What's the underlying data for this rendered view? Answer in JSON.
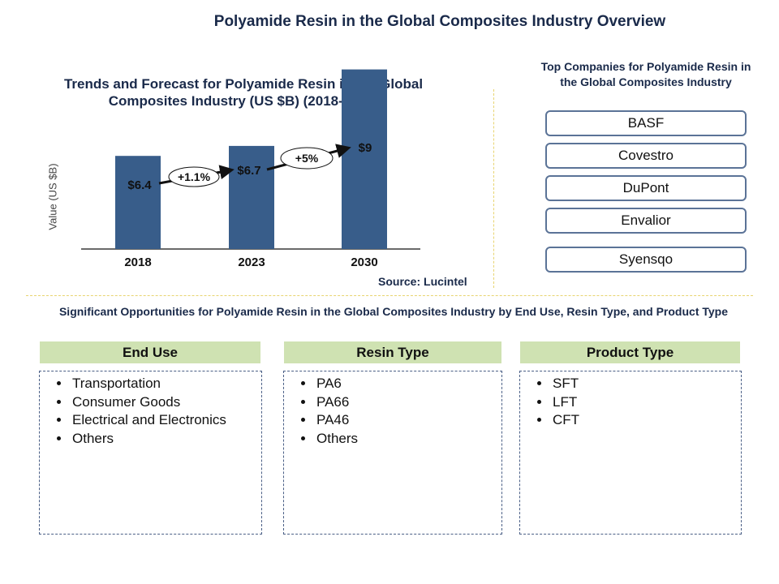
{
  "main_title": "Polyamide Resin in the Global Composites Industry Overview",
  "chart_data": {
    "type": "bar",
    "title": "Trends and Forecast for Polyamide Resin in the Global Composites Industry (US $B) (2018-2030)",
    "xlabel": "",
    "ylabel": "Value (US $B)",
    "categories": [
      "2018",
      "2023",
      "2030"
    ],
    "values": [
      6.4,
      6.7,
      9
    ],
    "data_labels": [
      "$6.4",
      "$6.7",
      "$9"
    ],
    "growth_annotations": [
      {
        "from": "2018",
        "to": "2023",
        "label": "+1.1%"
      },
      {
        "from": "2023",
        "to": "2030",
        "label": "+5%"
      }
    ],
    "bar_color": "#385d8a",
    "source": "Source: Lucintel"
  },
  "companies": {
    "title": "Top Companies for Polyamide Resin in the Global Composites Industry",
    "items": [
      "BASF",
      "Covestro",
      "DuPont",
      "Envalior",
      "Syensqo"
    ]
  },
  "opportunities": {
    "title": "Significant Opportunities for Polyamide Resin in the Global Composites Industry by End Use, Resin Type, and Product Type",
    "categories": [
      {
        "label": "End Use",
        "items": [
          "Transportation",
          "Consumer Goods",
          "Electrical and Electronics",
          "Others"
        ]
      },
      {
        "label": "Resin Type",
        "items": [
          "PA6",
          "PA66",
          "PA46",
          "Others"
        ]
      },
      {
        "label": "Product Type",
        "items": [
          "SFT",
          "LFT",
          "CFT"
        ]
      }
    ]
  }
}
